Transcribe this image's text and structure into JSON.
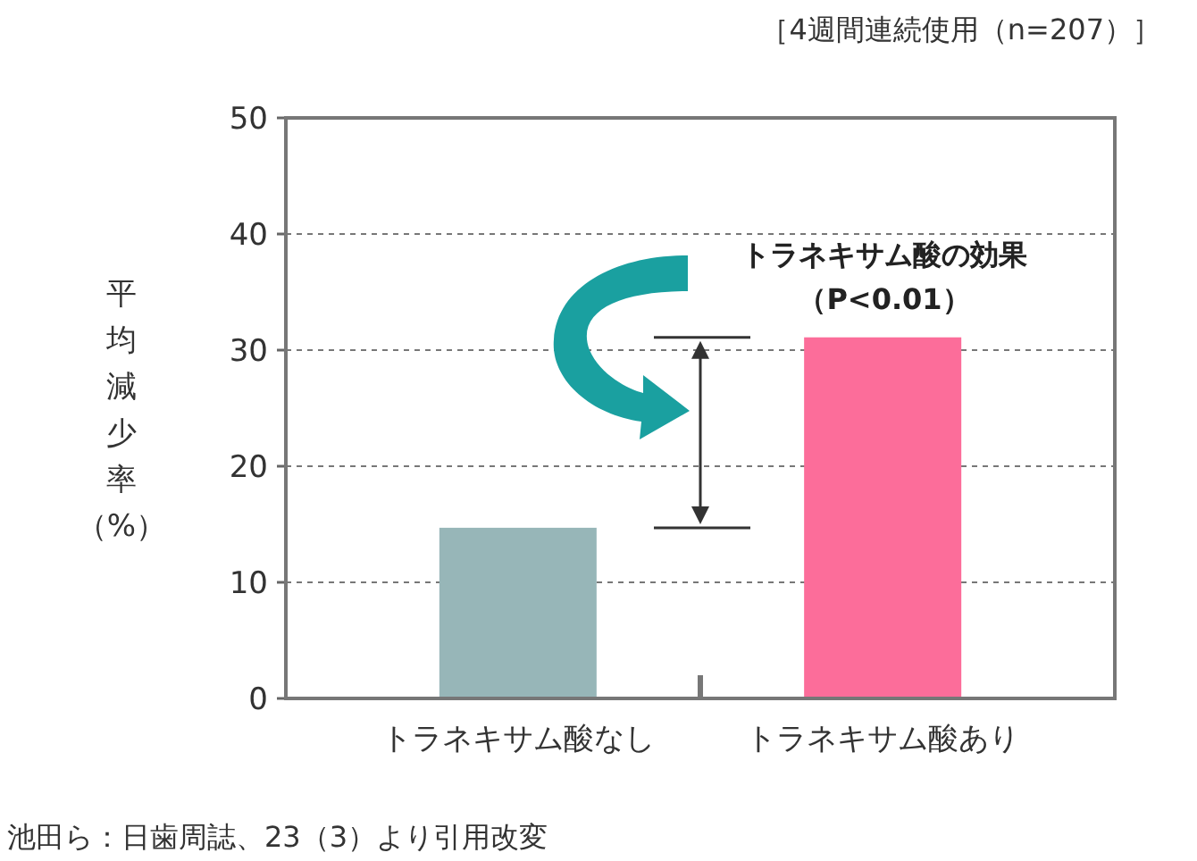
{
  "chart_data": {
    "type": "bar",
    "categories": [
      "トラネキサム酸なし",
      "トラネキサム酸あり"
    ],
    "values": [
      14.7,
      31.1
    ],
    "colors": [
      "#97b6b8",
      "#fc6d9a"
    ],
    "ylim": [
      0,
      50
    ],
    "yticks": [
      0,
      10,
      20,
      30,
      40,
      50
    ],
    "grid": "y",
    "ylabel": "平均減少率（%）",
    "annotations": [
      "［4週間連続使用（n=207）］",
      "トラネキサム酸の効果",
      "（P<0.01）",
      "池田ら：日歯周誌、23（3）より引用改変"
    ]
  }
}
